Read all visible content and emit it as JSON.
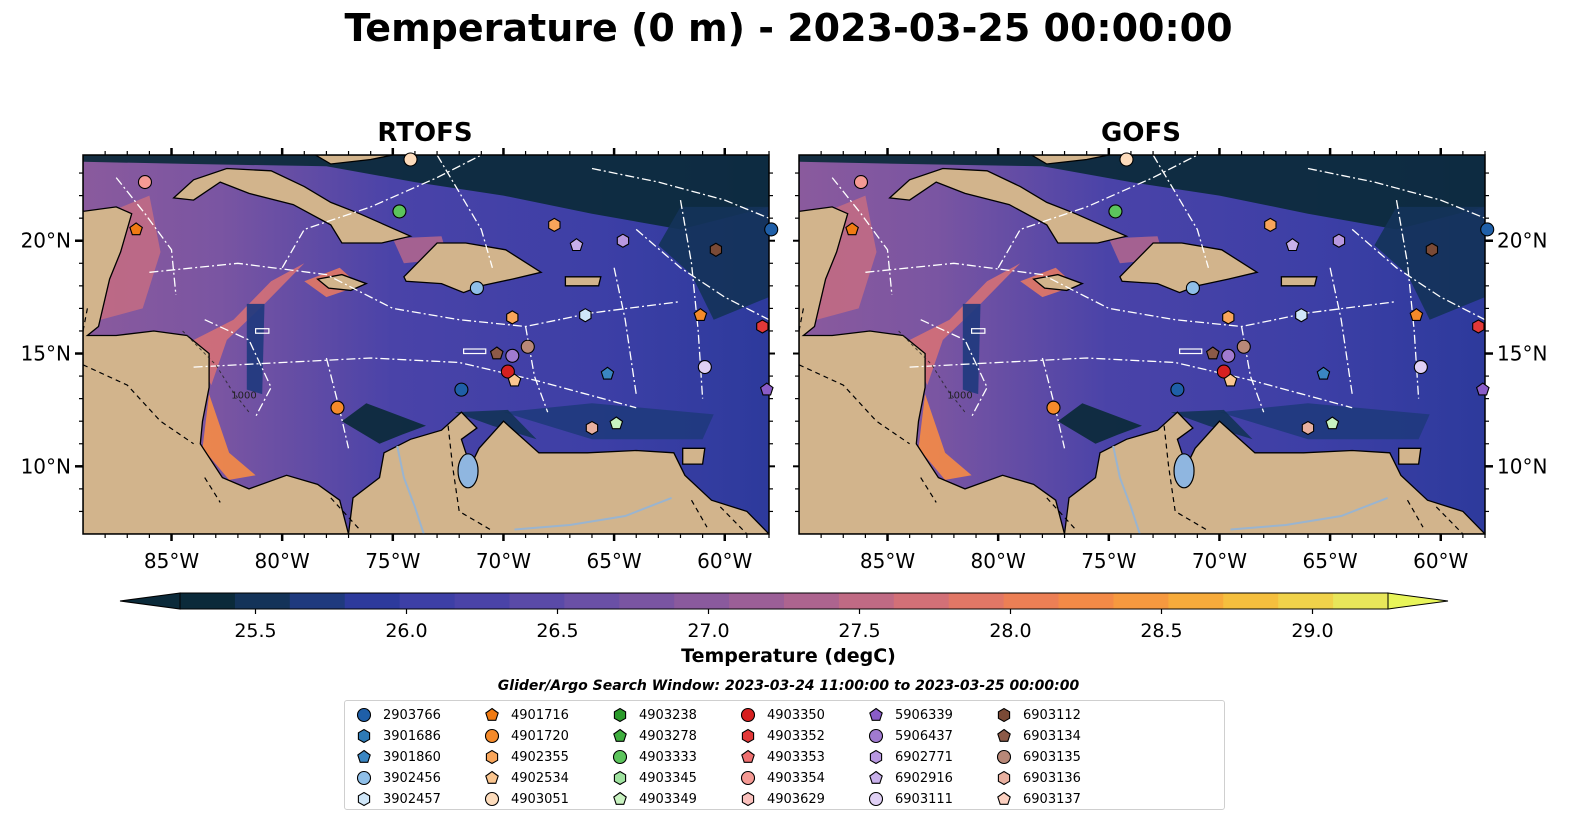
{
  "title": "Temperature (0 m) - 2023-03-25 00:00:00",
  "panels": [
    {
      "id": "rtofs",
      "title": "RTOFS",
      "contour_label": "1000"
    },
    {
      "id": "gofs",
      "title": "GOFS",
      "contour_label": "1000"
    }
  ],
  "lon_ticks": [
    "85°W",
    "80°W",
    "75°W",
    "70°W",
    "65°W",
    "60°W"
  ],
  "lat_ticks": [
    "20°N",
    "15°N",
    "10°N"
  ],
  "colorbar": {
    "label": "Temperature (degC)",
    "ticks": [
      "25.5",
      "26.0",
      "26.5",
      "27.0",
      "27.5",
      "28.0",
      "28.5",
      "29.0"
    ],
    "colors": [
      "#0b2a3a",
      "#143359",
      "#1f3a7e",
      "#2d3a9c",
      "#3d3fa6",
      "#4a43a8",
      "#5a4aa8",
      "#6a50a6",
      "#7a55a2",
      "#8a5a9d",
      "#9b5f97",
      "#ad648f",
      "#c06a84",
      "#d27077",
      "#e17766",
      "#ec7f55",
      "#f38a47",
      "#f6993f",
      "#f7ab3b",
      "#f5bf3e",
      "#f0d24a",
      "#e8e65a"
    ],
    "under_color": "#0b2a3a",
    "over_color": "#e8f55a"
  },
  "land_color": "#d2b48c",
  "legend": {
    "title": "Glider/Argo Search Window: 2023-03-24 11:00:00 to 2023-03-25 00:00:00",
    "items": [
      {
        "id": "2903766",
        "marker": "circle",
        "color": "#1f5fa8"
      },
      {
        "id": "3901686",
        "marker": "hexagon",
        "color": "#2e7ab5"
      },
      {
        "id": "3901860",
        "marker": "pentagon",
        "color": "#3a86c2"
      },
      {
        "id": "3902456",
        "marker": "circle",
        "color": "#8fbfe8"
      },
      {
        "id": "3902457",
        "marker": "hexagon",
        "color": "#cfe6f8"
      },
      {
        "id": "4901716",
        "marker": "pentagon",
        "color": "#f07a12"
      },
      {
        "id": "4901720",
        "marker": "circle",
        "color": "#f58a2a"
      },
      {
        "id": "4902355",
        "marker": "hexagon",
        "color": "#f8a55a"
      },
      {
        "id": "4902534",
        "marker": "pentagon",
        "color": "#fbc690"
      },
      {
        "id": "4903051",
        "marker": "circle",
        "color": "#fddcbc"
      },
      {
        "id": "4903238",
        "marker": "hexagon",
        "color": "#2a9a2a"
      },
      {
        "id": "4903278",
        "marker": "pentagon",
        "color": "#3fae3f"
      },
      {
        "id": "4903333",
        "marker": "circle",
        "color": "#5cc45c"
      },
      {
        "id": "4903345",
        "marker": "hexagon",
        "color": "#9fe29f"
      },
      {
        "id": "4903349",
        "marker": "pentagon",
        "color": "#c8f2c0"
      },
      {
        "id": "4903350",
        "marker": "circle",
        "color": "#d62020"
      },
      {
        "id": "4903352",
        "marker": "hexagon",
        "color": "#e23838"
      },
      {
        "id": "4903353",
        "marker": "pentagon",
        "color": "#ef7070"
      },
      {
        "id": "4903354",
        "marker": "circle",
        "color": "#f59a94"
      },
      {
        "id": "4903629",
        "marker": "hexagon",
        "color": "#fac0bc"
      },
      {
        "id": "5906339",
        "marker": "pentagon",
        "color": "#8a5cc8"
      },
      {
        "id": "5906437",
        "marker": "circle",
        "color": "#a07ad0"
      },
      {
        "id": "6902771",
        "marker": "hexagon",
        "color": "#b898e0"
      },
      {
        "id": "6902916",
        "marker": "pentagon",
        "color": "#c8b0ea"
      },
      {
        "id": "6903111",
        "marker": "circle",
        "color": "#e0d0f5"
      },
      {
        "id": "6903112",
        "marker": "hexagon",
        "color": "#7a4a36"
      },
      {
        "id": "6903134",
        "marker": "pentagon",
        "color": "#8c5a48"
      },
      {
        "id": "6903135",
        "marker": "circle",
        "color": "#b88878"
      },
      {
        "id": "6903136",
        "marker": "hexagon",
        "color": "#e8b0a0"
      },
      {
        "id": "6903137",
        "marker": "pentagon",
        "color": "#fcd0c0"
      }
    ]
  },
  "floats": [
    {
      "lon": -86.2,
      "lat": 22.6,
      "marker": "circle",
      "color": "#f59a94"
    },
    {
      "lon": -86.6,
      "lat": 20.5,
      "marker": "pentagon",
      "color": "#f07a12"
    },
    {
      "lon": -74.2,
      "lat": 23.6,
      "marker": "circle",
      "color": "#fddcbc"
    },
    {
      "lon": -74.7,
      "lat": 21.3,
      "marker": "circle",
      "color": "#5cc45c"
    },
    {
      "lon": -67.7,
      "lat": 20.7,
      "marker": "hexagon",
      "color": "#f8a55a"
    },
    {
      "lon": -66.7,
      "lat": 19.8,
      "marker": "pentagon",
      "color": "#c8b0ea"
    },
    {
      "lon": -64.6,
      "lat": 20.0,
      "marker": "hexagon",
      "color": "#b898e0"
    },
    {
      "lon": -60.4,
      "lat": 19.6,
      "marker": "hexagon",
      "color": "#7a4a36"
    },
    {
      "lon": -57.9,
      "lat": 20.5,
      "marker": "circle",
      "color": "#1f5fa8"
    },
    {
      "lon": -71.2,
      "lat": 17.9,
      "marker": "circle",
      "color": "#8fbfe8"
    },
    {
      "lon": -69.6,
      "lat": 16.6,
      "marker": "hexagon",
      "color": "#f8a55a"
    },
    {
      "lon": -66.3,
      "lat": 16.7,
      "marker": "hexagon",
      "color": "#cfe6f8"
    },
    {
      "lon": -61.1,
      "lat": 16.7,
      "marker": "pentagon",
      "color": "#f58a2a"
    },
    {
      "lon": -58.3,
      "lat": 16.2,
      "marker": "hexagon",
      "color": "#e23838"
    },
    {
      "lon": -70.3,
      "lat": 15.0,
      "marker": "pentagon",
      "color": "#8c5a48"
    },
    {
      "lon": -69.6,
      "lat": 14.9,
      "marker": "circle",
      "color": "#a07ad0"
    },
    {
      "lon": -68.9,
      "lat": 15.3,
      "marker": "circle",
      "color": "#b88878"
    },
    {
      "lon": -69.8,
      "lat": 14.2,
      "marker": "circle",
      "color": "#d62020"
    },
    {
      "lon": -69.5,
      "lat": 13.8,
      "marker": "pentagon",
      "color": "#fbc690"
    },
    {
      "lon": -71.9,
      "lat": 13.4,
      "marker": "circle",
      "color": "#1f5fa8"
    },
    {
      "lon": -65.3,
      "lat": 14.1,
      "marker": "pentagon",
      "color": "#3a86c2"
    },
    {
      "lon": -60.9,
      "lat": 14.4,
      "marker": "circle",
      "color": "#e0d0f5"
    },
    {
      "lon": -58.1,
      "lat": 13.4,
      "marker": "pentagon",
      "color": "#8a5cc8"
    },
    {
      "lon": -77.5,
      "lat": 12.6,
      "marker": "circle",
      "color": "#f58a2a"
    },
    {
      "lon": -66.0,
      "lat": 11.7,
      "marker": "hexagon",
      "color": "#e8b0a0"
    },
    {
      "lon": -64.9,
      "lat": 11.9,
      "marker": "pentagon",
      "color": "#c8f2c0"
    }
  ]
}
